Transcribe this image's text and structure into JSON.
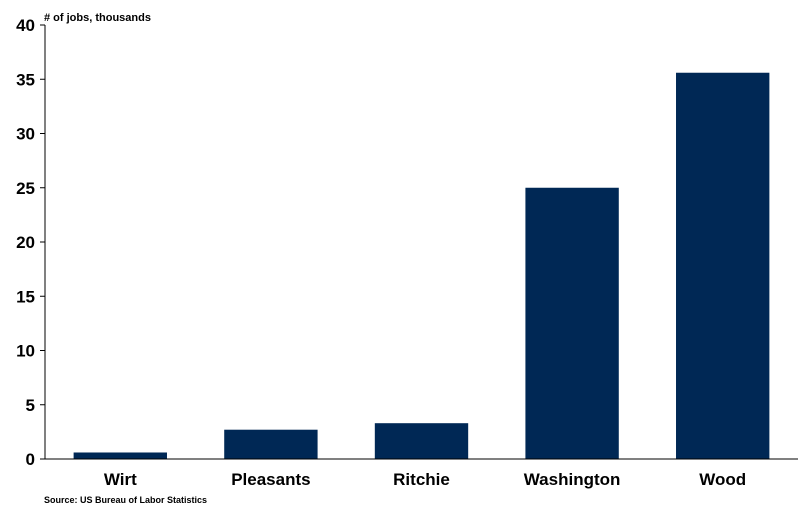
{
  "chart_data": {
    "type": "bar",
    "title": "",
    "ylabel": "# of jobs, thousands",
    "xlabel": "",
    "categories": [
      "Wirt",
      "Pleasants",
      "Ritchie",
      "Washington",
      "Wood"
    ],
    "values": [
      0.6,
      2.7,
      3.3,
      25.0,
      35.6
    ],
    "ylim": [
      0,
      40
    ],
    "yticks": [
      0,
      5,
      10,
      15,
      20,
      25,
      30,
      35,
      40
    ],
    "grid": false,
    "legend": "none",
    "bar_color": "#002855",
    "source": "Source: US Bureau of Labor Statistics"
  }
}
